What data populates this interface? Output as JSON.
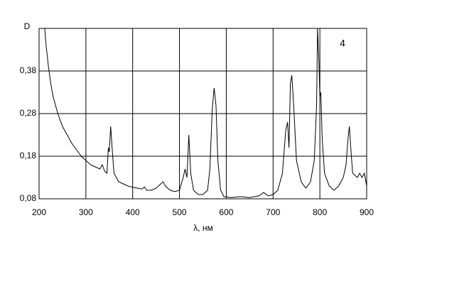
{
  "chart_data": {
    "type": "line",
    "y_label": "D",
    "x_label": "λ, нм",
    "annotation": "4",
    "x": [
      212,
      215,
      220,
      225,
      230,
      240,
      250,
      260,
      270,
      280,
      290,
      300,
      310,
      320,
      330,
      335,
      340,
      345,
      348,
      350,
      353,
      356,
      360,
      370,
      380,
      390,
      400,
      410,
      420,
      425,
      430,
      440,
      450,
      460,
      465,
      470,
      480,
      490,
      500,
      508,
      512,
      516,
      520,
      524,
      530,
      540,
      550,
      560,
      565,
      570,
      574,
      578,
      582,
      588,
      595,
      610,
      630,
      650,
      670,
      680,
      685,
      690,
      700,
      710,
      720,
      727,
      731,
      734,
      737,
      740,
      744,
      750,
      760,
      770,
      780,
      788,
      793,
      795,
      798,
      800,
      802,
      805,
      810,
      820,
      830,
      840,
      850,
      856,
      860,
      863,
      866,
      870,
      880,
      885,
      890,
      895,
      900
    ],
    "series": [
      {
        "color": "#000000",
        "values": [
          0.48,
          0.44,
          0.39,
          0.35,
          0.32,
          0.28,
          0.25,
          0.23,
          0.21,
          0.195,
          0.18,
          0.17,
          0.16,
          0.155,
          0.15,
          0.16,
          0.145,
          0.14,
          0.2,
          0.19,
          0.25,
          0.2,
          0.14,
          0.12,
          0.115,
          0.11,
          0.107,
          0.105,
          0.103,
          0.108,
          0.1,
          0.1,
          0.105,
          0.115,
          0.12,
          0.11,
          0.1,
          0.097,
          0.1,
          0.13,
          0.15,
          0.13,
          0.23,
          0.14,
          0.1,
          0.09,
          0.09,
          0.1,
          0.15,
          0.29,
          0.34,
          0.3,
          0.17,
          0.1,
          0.085,
          0.083,
          0.085,
          0.083,
          0.087,
          0.095,
          0.09,
          0.087,
          0.09,
          0.1,
          0.14,
          0.24,
          0.26,
          0.2,
          0.35,
          0.37,
          0.3,
          0.17,
          0.12,
          0.105,
          0.12,
          0.17,
          0.3,
          0.48,
          0.4,
          0.32,
          0.33,
          0.22,
          0.14,
          0.11,
          0.1,
          0.11,
          0.13,
          0.16,
          0.22,
          0.25,
          0.2,
          0.14,
          0.13,
          0.14,
          0.13,
          0.14,
          0.11
        ]
      }
    ],
    "xlim": [
      200,
      900
    ],
    "xticks": [
      200,
      300,
      400,
      500,
      600,
      700,
      800,
      900
    ],
    "ylim": [
      0.08,
      0.48
    ],
    "yticks": [
      {
        "value": 0.08,
        "label": "0,08"
      },
      {
        "value": 0.18,
        "label": "0,18"
      },
      {
        "value": 0.28,
        "label": "0,28"
      },
      {
        "value": 0.38,
        "label": "0,38"
      }
    ],
    "grid": true
  }
}
